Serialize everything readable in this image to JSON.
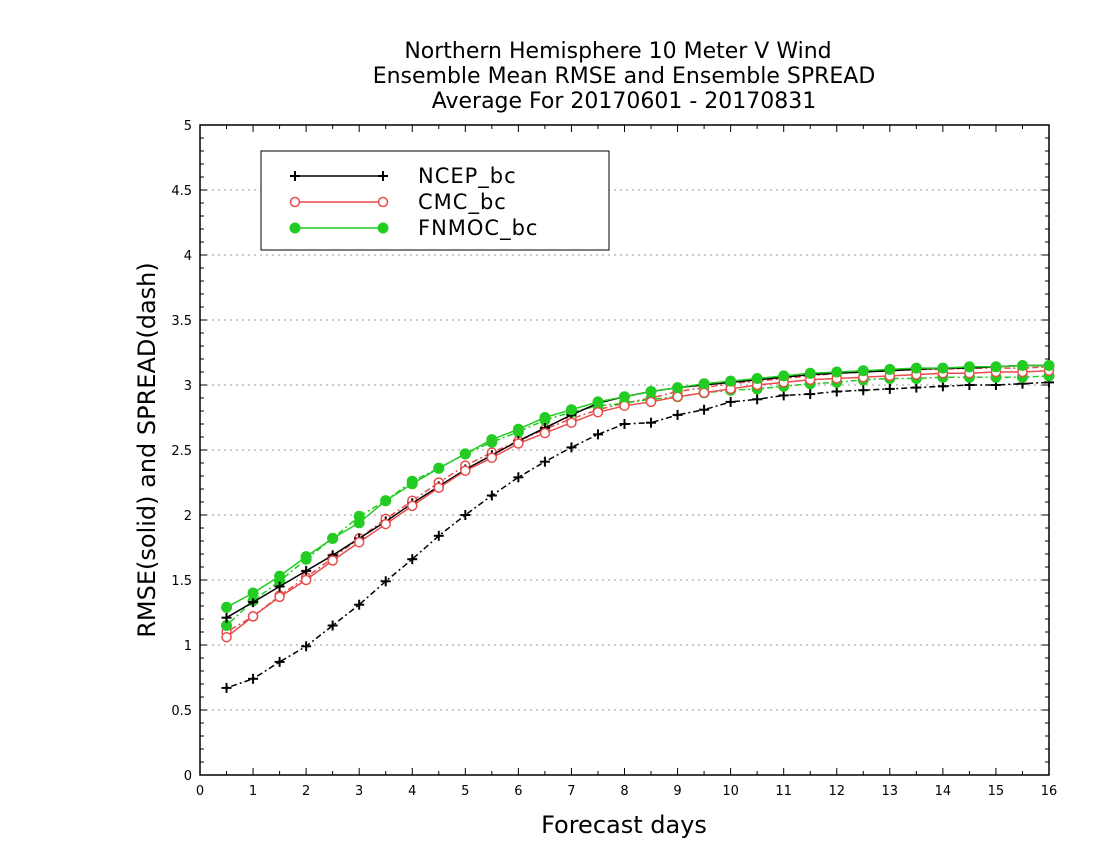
{
  "chart_data": {
    "type": "line",
    "title": [
      "Northern Hemisphere 10 Meter V Wind",
      "Ensemble Mean RMSE and Ensemble SPREAD",
      "Average For 20170601 - 20170831"
    ],
    "xlabel": "Forecast days",
    "ylabel": "RMSE(solid) and SPREAD(dash)",
    "xlim": [
      0,
      16
    ],
    "ylim": [
      0,
      5
    ],
    "xticks": [
      "0",
      "1",
      "2",
      "3",
      "4",
      "5",
      "6",
      "7",
      "8",
      "9",
      "10",
      "11",
      "12",
      "13",
      "14",
      "15",
      "16"
    ],
    "yticks": [
      "0",
      "0.5",
      "1",
      "1.5",
      "2",
      "2.5",
      "3",
      "3.5",
      "4",
      "4.5",
      "5"
    ],
    "grid": "dotted horizontal",
    "legend_position": "top-left",
    "x": [
      0.5,
      1,
      1.5,
      2,
      2.5,
      3,
      3.5,
      4,
      4.5,
      5,
      5.5,
      6,
      6.5,
      7,
      7.5,
      8,
      8.5,
      9,
      9.5,
      10,
      10.5,
      11,
      11.5,
      12,
      12.5,
      13,
      13.5,
      14,
      14.5,
      15,
      15.5,
      16
    ],
    "series": [
      {
        "name": "NCEP_bc",
        "color": "#000000",
        "marker": "plus",
        "rmse": [
          1.21,
          1.33,
          1.45,
          1.57,
          1.69,
          1.82,
          1.95,
          2.09,
          2.22,
          2.35,
          2.46,
          2.57,
          2.67,
          2.77,
          2.86,
          2.91,
          2.95,
          2.98,
          3.0,
          3.02,
          3.04,
          3.06,
          3.08,
          3.09,
          3.1,
          3.11,
          3.12,
          3.13,
          3.13,
          3.14,
          3.15,
          3.15
        ],
        "spread": [
          0.67,
          0.74,
          0.87,
          0.99,
          1.15,
          1.31,
          1.49,
          1.66,
          1.84,
          2.0,
          2.15,
          2.29,
          2.41,
          2.52,
          2.62,
          2.7,
          2.71,
          2.77,
          2.81,
          2.87,
          2.89,
          2.92,
          2.93,
          2.95,
          2.96,
          2.97,
          2.98,
          2.99,
          3.0,
          3.0,
          3.01,
          3.02
        ]
      },
      {
        "name": "CMC_bc",
        "color": "#e84c4c",
        "marker": "open-circle",
        "rmse": [
          1.06,
          1.22,
          1.37,
          1.5,
          1.65,
          1.79,
          1.93,
          2.07,
          2.21,
          2.34,
          2.44,
          2.55,
          2.63,
          2.71,
          2.79,
          2.84,
          2.87,
          2.91,
          2.94,
          2.97,
          3.0,
          3.02,
          3.04,
          3.05,
          3.06,
          3.07,
          3.08,
          3.09,
          3.09,
          3.1,
          3.1,
          3.11
        ],
        "spread": [
          1.1,
          1.22,
          1.38,
          1.52,
          1.67,
          1.82,
          1.97,
          2.11,
          2.25,
          2.38,
          2.48,
          2.57,
          2.66,
          2.74,
          2.81,
          2.86,
          2.9,
          2.95,
          2.98,
          3.01,
          3.03,
          3.05,
          3.07,
          3.09,
          3.1,
          3.11,
          3.12,
          3.12,
          3.13,
          3.13,
          3.13,
          3.14
        ]
      },
      {
        "name": "FNMOC_bc",
        "color": "#22cc22",
        "marker": "filled-circle",
        "rmse": [
          1.29,
          1.4,
          1.53,
          1.68,
          1.82,
          1.94,
          2.11,
          2.24,
          2.36,
          2.47,
          2.58,
          2.66,
          2.75,
          2.81,
          2.87,
          2.91,
          2.95,
          2.98,
          3.01,
          3.03,
          3.05,
          3.07,
          3.09,
          3.1,
          3.11,
          3.12,
          3.13,
          3.13,
          3.14,
          3.14,
          3.15,
          3.15
        ],
        "spread": [
          1.15,
          1.34,
          1.49,
          1.66,
          1.82,
          1.99,
          2.11,
          2.26,
          2.36,
          2.47,
          2.56,
          2.64,
          2.73,
          2.79,
          2.84,
          2.86,
          2.89,
          2.91,
          2.94,
          2.96,
          2.97,
          2.99,
          3.01,
          3.02,
          3.04,
          3.05,
          3.05,
          3.06,
          3.06,
          3.06,
          3.06,
          3.07
        ]
      }
    ]
  }
}
